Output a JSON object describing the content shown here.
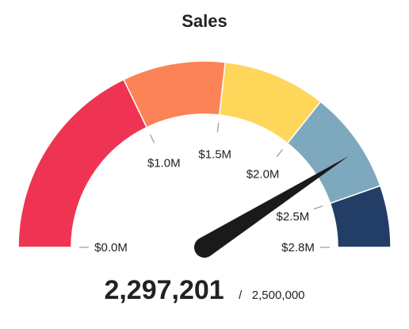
{
  "chart_data": {
    "type": "gauge",
    "title": "Sales",
    "min": 0,
    "max": 2800000,
    "value": 2297201,
    "value_label": "2,297,201",
    "target_label": "2,500,000",
    "separator": "/",
    "bands": [
      {
        "from": 0,
        "to": 1000000,
        "color": "#ee3452"
      },
      {
        "from": 1000000,
        "to": 1500000,
        "color": "#fc8357"
      },
      {
        "from": 1500000,
        "to": 2000000,
        "color": "#fed65a"
      },
      {
        "from": 2000000,
        "to": 2500000,
        "color": "#7ea8bd"
      },
      {
        "from": 2500000,
        "to": 2800000,
        "color": "#223e66"
      }
    ],
    "ticks": [
      {
        "value": 0,
        "label": "$0.0M"
      },
      {
        "value": 1000000,
        "label": "$1.0M"
      },
      {
        "value": 1500000,
        "label": "$1.5M"
      },
      {
        "value": 2000000,
        "label": "$2.0M"
      },
      {
        "value": 2500000,
        "label": "$2.5M"
      },
      {
        "value": 2800000,
        "label": "$2.8M"
      }
    ],
    "needle_color": "#1a1a1a",
    "tick_color": "#999999"
  }
}
